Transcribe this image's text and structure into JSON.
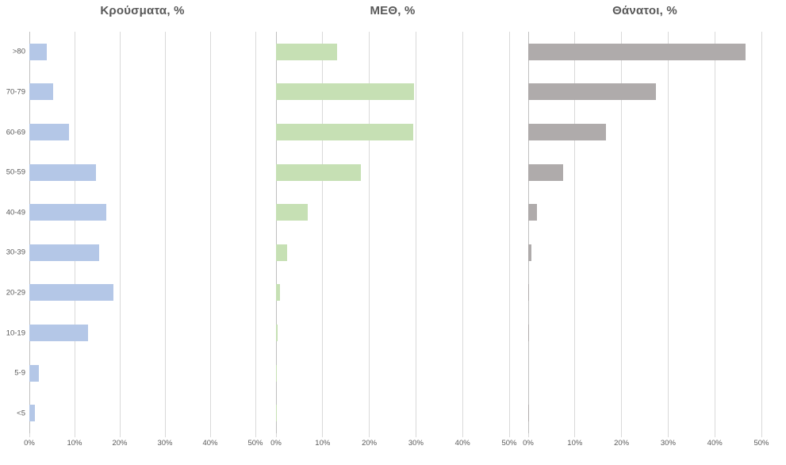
{
  "chart_data": [
    {
      "type": "bar",
      "orientation": "horizontal",
      "title": "Κρούσματα, %",
      "color": "#b4c7e7",
      "categories": [
        ">80",
        "70-79",
        "60-69",
        "50-59",
        "40-49",
        "30-39",
        "20-29",
        "10-19",
        "5-9",
        "<5"
      ],
      "values": [
        3.9,
        5.2,
        8.7,
        14.8,
        17.1,
        15.4,
        18.6,
        12.9,
        2.1,
        1.3
      ],
      "xlim": [
        0,
        50
      ],
      "xticks": [
        0,
        10,
        20,
        30,
        40,
        50
      ],
      "xtick_labels": [
        "0%",
        "10%",
        "20%",
        "30%",
        "40%",
        "50%"
      ],
      "grid": true,
      "legend": "none",
      "show_category_labels": true
    },
    {
      "type": "bar",
      "orientation": "horizontal",
      "title": "ΜΕΘ, %",
      "color": "#c6e0b4",
      "categories": [
        ">80",
        "70-79",
        "60-69",
        "50-59",
        "40-49",
        "30-39",
        "20-29",
        "10-19",
        "5-9",
        "<5"
      ],
      "values": [
        13.1,
        29.6,
        29.4,
        18.2,
        6.8,
        2.3,
        0.8,
        0.3,
        0.1,
        0.1
      ],
      "xlim": [
        0,
        50
      ],
      "xticks": [
        0,
        10,
        20,
        30,
        40,
        50
      ],
      "xtick_labels": [
        "0%",
        "10%",
        "20%",
        "30%",
        "40%",
        "50%"
      ],
      "grid": true,
      "legend": "none",
      "show_category_labels": false
    },
    {
      "type": "bar",
      "orientation": "horizontal",
      "title": "Θάνατοι, %",
      "color": "#afabab",
      "categories": [
        ">80",
        "70-79",
        "60-69",
        "50-59",
        "40-49",
        "30-39",
        "20-29",
        "10-19",
        "5-9",
        "<5"
      ],
      "values": [
        46.6,
        27.3,
        16.6,
        7.4,
        1.9,
        0.6,
        0.2,
        0.2,
        0,
        0.2
      ],
      "xlim": [
        0,
        50
      ],
      "xticks": [
        0,
        10,
        20,
        30,
        40,
        50
      ],
      "xtick_labels": [
        "0%",
        "10%",
        "20%",
        "30%",
        "40%",
        "50%"
      ],
      "grid": true,
      "legend": "none",
      "show_category_labels": false
    }
  ]
}
